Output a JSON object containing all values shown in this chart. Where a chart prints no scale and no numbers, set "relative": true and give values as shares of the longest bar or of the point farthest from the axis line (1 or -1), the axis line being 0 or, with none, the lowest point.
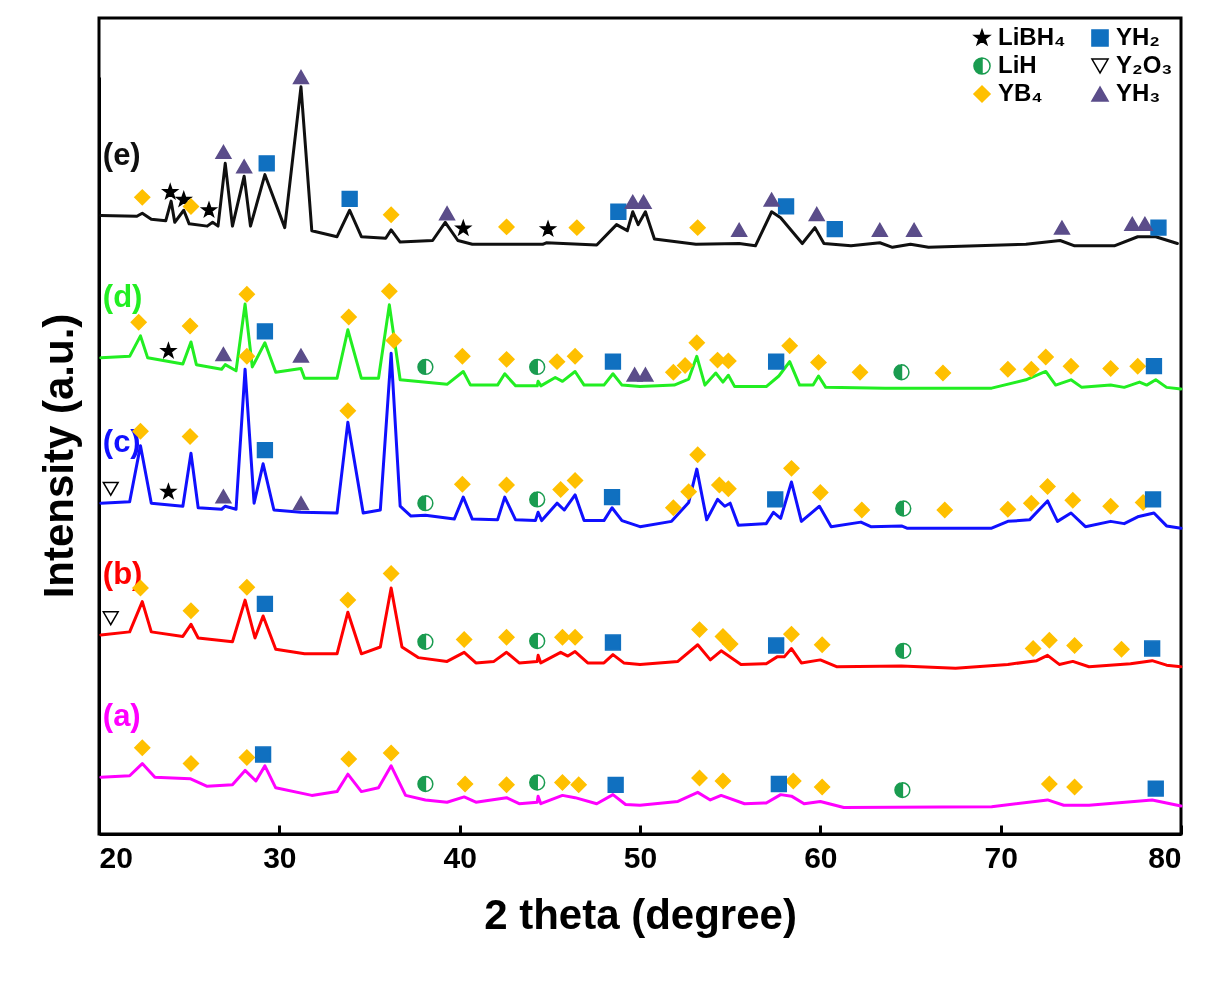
{
  "chart_data": {
    "type": "line",
    "relative": true,
    "xlabel": "2 theta (degree)",
    "ylabel": "Intensity (a.u.)",
    "xlim": [
      20,
      80
    ],
    "xticks": [
      20,
      30,
      40,
      50,
      60,
      70,
      80
    ],
    "legend": "top right",
    "series": [
      {
        "name": "(a)",
        "color": "#ff00ff",
        "x": [
          20.1,
          21.7,
          22.4,
          23.1,
          25.05,
          26.0,
          27.4,
          28.1,
          28.7,
          29.2,
          29.8,
          31.8,
          33.2,
          33.8,
          34.55,
          35.5,
          36.2,
          37.0,
          38.1,
          39.3,
          40.25,
          40.9,
          42.6,
          43.3,
          44.3,
          44.35,
          44.5,
          45.7,
          46.4,
          47.6,
          48.5,
          49.2,
          50.0,
          52.1,
          53.2,
          53.9,
          54.5,
          55.8,
          57.0,
          57.8,
          58.4,
          59.1,
          60.0,
          61.3,
          69.5,
          72.6,
          73.5,
          74.9,
          78.4,
          80.0
        ],
        "values": [
          0.075,
          0.077,
          0.093,
          0.075,
          0.073,
          0.063,
          0.065,
          0.084,
          0.07,
          0.09,
          0.061,
          0.051,
          0.056,
          0.079,
          0.056,
          0.061,
          0.09,
          0.051,
          0.045,
          0.042,
          0.049,
          0.042,
          0.048,
          0.04,
          0.042,
          0.05,
          0.04,
          0.051,
          0.048,
          0.04,
          0.052,
          0.039,
          0.038,
          0.043,
          0.055,
          0.045,
          0.051,
          0.04,
          0.041,
          0.052,
          0.05,
          0.04,
          0.043,
          0.035,
          0.036,
          0.045,
          0.038,
          0.038,
          0.045,
          0.037
        ]
      },
      {
        "name": "(b)",
        "color": "#ff0000",
        "x": [
          20.1,
          21.7,
          22.4,
          22.9,
          24.65,
          25.1,
          25.5,
          27.4,
          28.1,
          28.65,
          29.1,
          29.8,
          31.4,
          33.2,
          33.8,
          34.55,
          35.6,
          36.2,
          36.8,
          37.7,
          39.3,
          40.25,
          40.9,
          41.9,
          42.6,
          43.3,
          44.3,
          44.35,
          44.5,
          45.6,
          46.0,
          46.4,
          47.1,
          48.0,
          48.5,
          49.1,
          50.0,
          52.1,
          53.2,
          53.9,
          54.5,
          55.6,
          57.0,
          57.6,
          58.0,
          58.4,
          58.95,
          60.0,
          60.9,
          64.5,
          67.5,
          70.4,
          72.0,
          72.6,
          73.25,
          74.0,
          74.9,
          77.2,
          78.4,
          79.2,
          80.0
        ],
        "values": [
          0.263,
          0.267,
          0.307,
          0.267,
          0.261,
          0.277,
          0.259,
          0.254,
          0.309,
          0.259,
          0.288,
          0.244,
          0.238,
          0.238,
          0.293,
          0.238,
          0.247,
          0.325,
          0.247,
          0.233,
          0.228,
          0.24,
          0.226,
          0.228,
          0.24,
          0.226,
          0.228,
          0.236,
          0.226,
          0.24,
          0.235,
          0.241,
          0.226,
          0.226,
          0.237,
          0.226,
          0.224,
          0.228,
          0.25,
          0.23,
          0.242,
          0.224,
          0.225,
          0.234,
          0.234,
          0.245,
          0.226,
          0.23,
          0.221,
          0.222,
          0.219,
          0.224,
          0.229,
          0.236,
          0.224,
          0.228,
          0.221,
          0.225,
          0.229,
          0.223,
          0.221
        ]
      },
      {
        "name": "(c)",
        "color": "#1010ff",
        "x": [
          20.1,
          21.7,
          22.3,
          22.9,
          24.65,
          25.1,
          25.5,
          26.8,
          27.0,
          27.6,
          28.1,
          28.6,
          29.1,
          29.7,
          31.2,
          33.2,
          33.8,
          34.65,
          35.6,
          36.2,
          36.7,
          37.3,
          38.1,
          39.7,
          40.2,
          40.7,
          42.1,
          42.5,
          43.1,
          44.2,
          44.35,
          44.55,
          45.4,
          45.8,
          46.4,
          46.9,
          48.0,
          48.45,
          49.0,
          50.0,
          51.75,
          52.7,
          53.15,
          53.7,
          54.3,
          54.7,
          55.0,
          55.45,
          57.0,
          57.4,
          57.8,
          58.4,
          58.95,
          59.95,
          60.6,
          62.25,
          62.8,
          64.5,
          64.8,
          69.5,
          70.4,
          71.6,
          72.6,
          73.15,
          73.9,
          74.7,
          76.1,
          76.85,
          77.6,
          78.5,
          79.2,
          80.0
        ],
        "values": [
          0.437,
          0.439,
          0.513,
          0.437,
          0.433,
          0.503,
          0.431,
          0.429,
          0.433,
          0.429,
          0.614,
          0.437,
          0.489,
          0.428,
          0.425,
          0.424,
          0.544,
          0.424,
          0.428,
          0.635,
          0.433,
          0.42,
          0.421,
          0.416,
          0.445,
          0.416,
          0.415,
          0.445,
          0.415,
          0.414,
          0.425,
          0.414,
          0.437,
          0.428,
          0.448,
          0.414,
          0.414,
          0.431,
          0.414,
          0.406,
          0.413,
          0.438,
          0.482,
          0.415,
          0.442,
          0.433,
          0.437,
          0.408,
          0.41,
          0.425,
          0.417,
          0.465,
          0.413,
          0.433,
          0.406,
          0.412,
          0.406,
          0.407,
          0.404,
          0.404,
          0.413,
          0.415,
          0.44,
          0.413,
          0.424,
          0.406,
          0.413,
          0.41,
          0.419,
          0.424,
          0.407,
          0.404
        ]
      },
      {
        "name": "(d)",
        "color": "#22ee22",
        "x": [
          20.1,
          21.7,
          22.3,
          22.7,
          24.65,
          25.1,
          25.4,
          26.8,
          27.0,
          27.6,
          28.1,
          28.5,
          29.2,
          29.8,
          31.2,
          31.4,
          33.2,
          33.8,
          34.55,
          35.5,
          36.1,
          36.7,
          39.3,
          40.2,
          40.6,
          42.1,
          42.5,
          43.1,
          44.3,
          44.35,
          44.5,
          45.3,
          45.7,
          46.4,
          46.9,
          48.0,
          48.5,
          49.0,
          50.0,
          51.9,
          52.7,
          53.15,
          53.6,
          54.2,
          54.6,
          54.9,
          55.25,
          57.0,
          57.7,
          58.3,
          58.85,
          59.6,
          59.9,
          60.3,
          63.6,
          69.5,
          71.4,
          72.5,
          73.05,
          73.9,
          74.5,
          76.1,
          76.85,
          77.7,
          78.1,
          78.6,
          79.2,
          80.0
        ],
        "values": [
          0.629,
          0.631,
          0.658,
          0.629,
          0.621,
          0.65,
          0.62,
          0.614,
          0.62,
          0.612,
          0.7,
          0.617,
          0.649,
          0.61,
          0.615,
          0.602,
          0.602,
          0.666,
          0.602,
          0.602,
          0.699,
          0.6,
          0.594,
          0.611,
          0.593,
          0.593,
          0.608,
          0.592,
          0.592,
          0.598,
          0.592,
          0.603,
          0.598,
          0.611,
          0.593,
          0.593,
          0.608,
          0.593,
          0.591,
          0.593,
          0.601,
          0.631,
          0.593,
          0.609,
          0.597,
          0.606,
          0.591,
          0.591,
          0.605,
          0.624,
          0.593,
          0.593,
          0.605,
          0.59,
          0.589,
          0.589,
          0.6,
          0.611,
          0.593,
          0.6,
          0.59,
          0.593,
          0.59,
          0.597,
          0.593,
          0.6,
          0.59,
          0.588
        ]
      },
      {
        "name": "(e)",
        "color": "#101010",
        "x": [
          20.1,
          22.1,
          22.4,
          22.9,
          23.7,
          24.0,
          24.2,
          24.7,
          25.0,
          26.0,
          26.3,
          26.6,
          27.0,
          27.4,
          28.05,
          28.4,
          29.2,
          30.3,
          31.2,
          31.8,
          33.2,
          33.9,
          34.55,
          35.9,
          36.2,
          36.7,
          38.5,
          39.2,
          39.9,
          40.7,
          44.6,
          44.8,
          47.6,
          48.7,
          49.3,
          49.6,
          49.9,
          50.3,
          50.8,
          53.1,
          55.5,
          56.4,
          57.3,
          57.8,
          59.0,
          59.7,
          60.2,
          61.7,
          63.3,
          64.0,
          65.0,
          66.0,
          71.4,
          73.3,
          74.1,
          76.3,
          77.6,
          78.6,
          79.8
        ],
        "values": [
          0.817,
          0.816,
          0.82,
          0.812,
          0.81,
          0.836,
          0.808,
          0.824,
          0.806,
          0.803,
          0.808,
          0.803,
          0.886,
          0.803,
          0.869,
          0.803,
          0.871,
          0.801,
          0.987,
          0.797,
          0.789,
          0.824,
          0.789,
          0.787,
          0.798,
          0.782,
          0.784,
          0.808,
          0.784,
          0.779,
          0.779,
          0.781,
          0.778,
          0.805,
          0.797,
          0.822,
          0.805,
          0.822,
          0.786,
          0.779,
          0.78,
          0.777,
          0.822,
          0.814,
          0.78,
          0.801,
          0.78,
          0.777,
          0.781,
          0.775,
          0.779,
          0.775,
          0.779,
          0.784,
          0.777,
          0.777,
          0.789,
          0.789,
          0.78
        ]
      },
      {
        "name": "LiBH₄",
        "type": "scatter",
        "marker": "star",
        "color": "#000000",
        "x": [
          23.95,
          24.7,
          26.1,
          40.2,
          44.9,
          23.85,
          23.85
        ],
        "values": [
          0.848,
          0.838,
          0.824,
          0.8,
          0.799,
          0.638,
          0.452
        ]
      },
      {
        "name": "LiH",
        "type": "scatter",
        "marker": "circle",
        "color": "#1a9c50",
        "x": [
          38.1,
          44.3,
          64.5,
          38.1,
          44.3,
          64.6,
          38.1,
          44.3,
          64.6,
          38.1,
          44.3,
          64.55
        ],
        "values": [
          0.617,
          0.617,
          0.61,
          0.437,
          0.442,
          0.43,
          0.254,
          0.255,
          0.242,
          0.066,
          0.068,
          0.058
        ]
      },
      {
        "name": "YB₄",
        "type": "scatter",
        "marker": "diamond",
        "color": "#ffc000",
        "x": [
          22.4,
          25.1,
          36.2,
          42.6,
          46.5,
          53.2,
          22.2,
          25.05,
          28.2,
          33.85,
          36.1,
          40.15,
          42.6,
          45.4,
          46.4,
          51.85,
          52.5,
          53.15,
          54.3,
          54.9,
          58.3,
          59.9,
          62.2,
          66.8,
          70.4,
          71.7,
          72.5,
          73.9,
          76.1,
          77.6,
          22.3,
          25.05,
          28.2,
          33.8,
          36.35,
          40.15,
          42.6,
          45.6,
          46.4,
          51.85,
          52.7,
          53.2,
          54.4,
          54.9,
          58.4,
          60.0,
          62.3,
          66.9,
          70.4,
          71.7,
          72.6,
          74.0,
          76.1,
          77.9,
          22.3,
          25.1,
          28.2,
          33.8,
          36.2,
          40.25,
          42.6,
          45.7,
          46.4,
          53.3,
          54.6,
          55.0,
          58.4,
          60.1,
          71.8,
          72.7,
          74.1,
          76.7,
          22.4,
          25.1,
          28.2,
          33.85,
          36.2,
          40.3,
          42.6,
          45.7,
          46.6,
          53.3,
          54.6,
          58.5,
          60.1,
          72.7,
          74.1
        ],
        "values": [
          0.841,
          0.829,
          0.818,
          0.802,
          0.801,
          0.801,
          0.676,
          0.671,
          0.713,
          0.683,
          0.717,
          0.631,
          0.627,
          0.624,
          0.631,
          0.61,
          0.619,
          0.649,
          0.626,
          0.625,
          0.645,
          0.623,
          0.61,
          0.609,
          0.614,
          0.614,
          0.63,
          0.618,
          0.615,
          0.618,
          0.532,
          0.525,
          0.631,
          0.559,
          0.652,
          0.462,
          0.461,
          0.455,
          0.467,
          0.431,
          0.452,
          0.501,
          0.461,
          0.456,
          0.483,
          0.451,
          0.428,
          0.428,
          0.429,
          0.437,
          0.459,
          0.441,
          0.433,
          0.438,
          0.325,
          0.295,
          0.326,
          0.309,
          0.344,
          0.257,
          0.26,
          0.26,
          0.26,
          0.27,
          0.261,
          0.251,
          0.264,
          0.25,
          0.245,
          0.256,
          0.249,
          0.244,
          0.114,
          0.093,
          0.101,
          0.099,
          0.107,
          0.066,
          0.065,
          0.068,
          0.065,
          0.074,
          0.07,
          0.07,
          0.062,
          0.066,
          0.062
        ]
      },
      {
        "name": "YH₂",
        "type": "scatter",
        "marker": "square",
        "color": "#1070c0",
        "x": [
          29.3,
          33.9,
          48.8,
          58.1,
          60.8,
          78.75,
          29.2,
          48.5,
          57.55,
          78.5,
          29.2,
          48.45,
          57.5,
          78.45,
          29.2,
          48.5,
          57.55,
          78.4,
          29.1,
          48.65,
          57.7,
          78.6
        ],
        "values": [
          0.886,
          0.839,
          0.822,
          0.829,
          0.799,
          0.801,
          0.664,
          0.624,
          0.624,
          0.618,
          0.507,
          0.445,
          0.442,
          0.442,
          0.304,
          0.253,
          0.249,
          0.245,
          0.105,
          0.065,
          0.066,
          0.06
        ]
      },
      {
        "name": "Y₂O₃",
        "type": "scatter",
        "marker": "triangle-down",
        "color": "#000000",
        "x": [
          20.65,
          20.65
        ],
        "values": [
          0.456,
          0.285
        ]
      },
      {
        "name": "YH₃",
        "type": "scatter",
        "marker": "triangle",
        "color": "#5b4d8a",
        "x": [
          26.9,
          28.05,
          31.2,
          39.3,
          49.6,
          50.2,
          55.5,
          57.3,
          59.8,
          63.3,
          65.2,
          73.4,
          77.3,
          78.0,
          26.9,
          31.2,
          49.7,
          50.3,
          26.9,
          31.2
        ],
        "values": [
          0.901,
          0.882,
          1.0,
          0.82,
          0.835,
          0.835,
          0.798,
          0.838,
          0.819,
          0.798,
          0.798,
          0.801,
          0.806,
          0.806,
          0.634,
          0.632,
          0.607,
          0.607,
          0.446,
          0.437
        ]
      }
    ]
  }
}
